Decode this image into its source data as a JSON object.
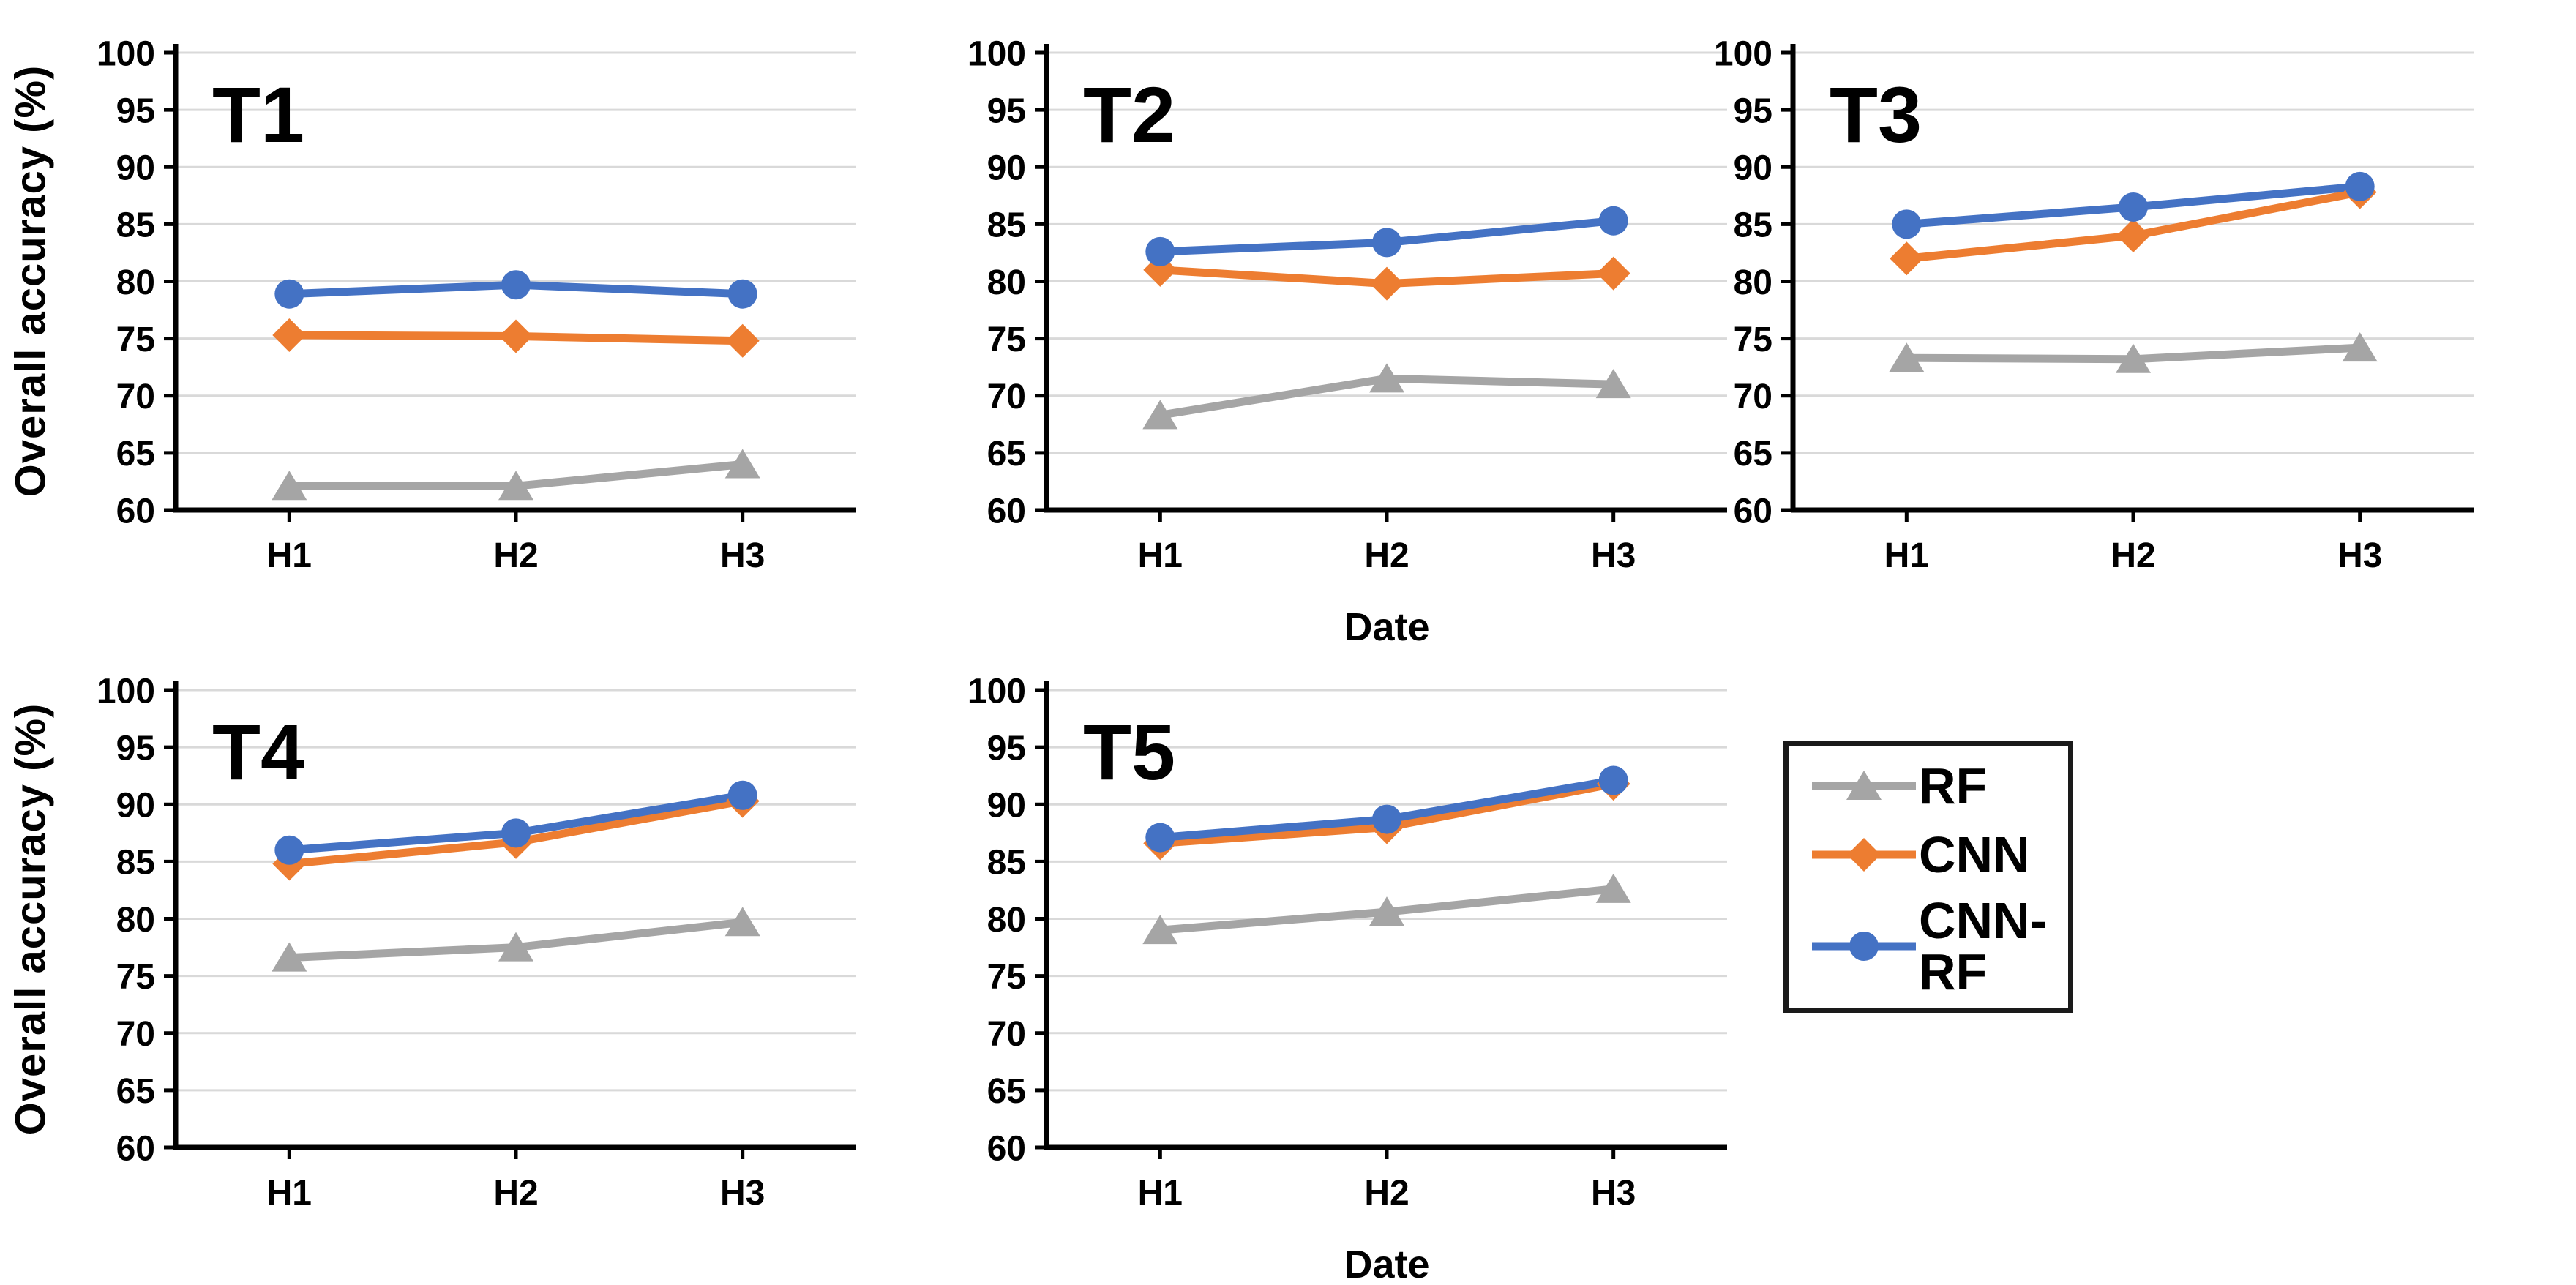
{
  "figure": {
    "background": "#ffffff"
  },
  "colors": {
    "rf": "#A5A5A5",
    "cnn": "#ED7D31",
    "cnn_rf": "#4472C4",
    "gridline": "#D9D9D9",
    "axis": "#000000",
    "text": "#000000"
  },
  "axes": {
    "y_label": "Overall accuracy (%)",
    "x_label": "Date",
    "ylim": [
      60,
      100
    ],
    "y_ticks": [
      "100",
      "95",
      "90",
      "85",
      "80",
      "75",
      "70",
      "65",
      "60"
    ],
    "categories": [
      "H1",
      "H2",
      "H3"
    ],
    "grid": "horizontal"
  },
  "legend": {
    "position": "bottom-right",
    "items": [
      {
        "label": "RF",
        "marker": "triangle",
        "color": "#A5A5A5"
      },
      {
        "label": "CNN",
        "marker": "diamond",
        "color": "#ED7D31"
      },
      {
        "label": "CNN-RF",
        "marker": "circle",
        "color": "#4472C4"
      }
    ]
  },
  "chart_data": [
    {
      "type": "line",
      "title": "T1",
      "categories": [
        "H1",
        "H2",
        "H3"
      ],
      "ylim": [
        60,
        100
      ],
      "ytick_step": 5,
      "show_y_axis_title": true,
      "show_x_axis_title": false,
      "series": [
        {
          "name": "RF",
          "marker": "triangle",
          "color": "#A5A5A5",
          "values": [
            62.1,
            62.1,
            64.0
          ]
        },
        {
          "name": "CNN",
          "marker": "diamond",
          "color": "#ED7D31",
          "values": [
            75.3,
            75.2,
            74.8
          ]
        },
        {
          "name": "CNN-RF",
          "marker": "circle",
          "color": "#4472C4",
          "values": [
            78.9,
            79.7,
            78.9
          ]
        }
      ]
    },
    {
      "type": "line",
      "title": "T2",
      "categories": [
        "H1",
        "H2",
        "H3"
      ],
      "ylim": [
        60,
        100
      ],
      "ytick_step": 5,
      "show_y_axis_title": false,
      "show_x_axis_title": true,
      "series": [
        {
          "name": "RF",
          "marker": "triangle",
          "color": "#A5A5A5",
          "values": [
            68.3,
            71.5,
            71.0
          ]
        },
        {
          "name": "CNN",
          "marker": "diamond",
          "color": "#ED7D31",
          "values": [
            81.0,
            79.8,
            80.7
          ]
        },
        {
          "name": "CNN-RF",
          "marker": "circle",
          "color": "#4472C4",
          "values": [
            82.6,
            83.4,
            85.3
          ]
        }
      ]
    },
    {
      "type": "line",
      "title": "T3",
      "categories": [
        "H1",
        "H2",
        "H3"
      ],
      "ylim": [
        60,
        100
      ],
      "ytick_step": 5,
      "show_y_axis_title": false,
      "show_x_axis_title": false,
      "series": [
        {
          "name": "RF",
          "marker": "triangle",
          "color": "#A5A5A5",
          "values": [
            73.3,
            73.2,
            74.2
          ]
        },
        {
          "name": "CNN",
          "marker": "diamond",
          "color": "#ED7D31",
          "values": [
            82.0,
            84.0,
            87.8
          ]
        },
        {
          "name": "CNN-RF",
          "marker": "circle",
          "color": "#4472C4",
          "values": [
            85.0,
            86.5,
            88.3
          ]
        }
      ]
    },
    {
      "type": "line",
      "title": "T4",
      "categories": [
        "H1",
        "H2",
        "H3"
      ],
      "ylim": [
        60,
        100
      ],
      "ytick_step": 5,
      "show_y_axis_title": true,
      "show_x_axis_title": false,
      "series": [
        {
          "name": "RF",
          "marker": "triangle",
          "color": "#A5A5A5",
          "values": [
            76.6,
            77.5,
            79.7
          ]
        },
        {
          "name": "CNN",
          "marker": "diamond",
          "color": "#ED7D31",
          "values": [
            84.8,
            86.7,
            90.3
          ]
        },
        {
          "name": "CNN-RF",
          "marker": "circle",
          "color": "#4472C4",
          "values": [
            86.0,
            87.5,
            90.8
          ]
        }
      ]
    },
    {
      "type": "line",
      "title": "T5",
      "categories": [
        "H1",
        "H2",
        "H3"
      ],
      "ylim": [
        60,
        100
      ],
      "ytick_step": 5,
      "show_y_axis_title": false,
      "show_x_axis_title": true,
      "series": [
        {
          "name": "RF",
          "marker": "triangle",
          "color": "#A5A5A5",
          "values": [
            79.0,
            80.6,
            82.6
          ]
        },
        {
          "name": "CNN",
          "marker": "diamond",
          "color": "#ED7D31",
          "values": [
            86.6,
            88.0,
            91.8
          ]
        },
        {
          "name": "CNN-RF",
          "marker": "circle",
          "color": "#4472C4",
          "values": [
            87.1,
            88.7,
            92.1
          ]
        }
      ]
    }
  ]
}
